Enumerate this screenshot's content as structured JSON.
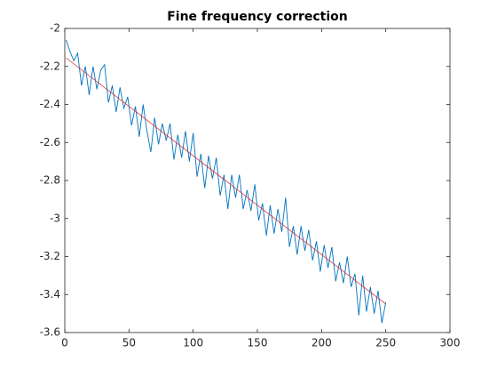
{
  "chart_data": {
    "type": "line",
    "title": "Fine frequency correction",
    "xlim": [
      0,
      300
    ],
    "xticks": [
      0,
      50,
      100,
      150,
      200,
      250,
      300
    ],
    "ylim": [
      -3.6,
      -2
    ],
    "yticks": [
      -2,
      -2.2,
      -2.4,
      -2.6,
      -2.8,
      -3,
      -3.2,
      -3.4,
      -3.6
    ],
    "series": [
      {
        "color": "#0072bd",
        "x": [
          1,
          4,
          7,
          10,
          13,
          16,
          19,
          22,
          25,
          28,
          31,
          34,
          37,
          40,
          43,
          46,
          49,
          52,
          55,
          58,
          61,
          64,
          67,
          70,
          73,
          76,
          79,
          82,
          85,
          88,
          91,
          94,
          97,
          100,
          103,
          106,
          109,
          112,
          115,
          118,
          121,
          124,
          127,
          130,
          133,
          136,
          139,
          142,
          145,
          148,
          151,
          154,
          157,
          160,
          163,
          166,
          169,
          172,
          175,
          178,
          181,
          184,
          187,
          190,
          193,
          196,
          199,
          202,
          205,
          208,
          211,
          214,
          217,
          220,
          223,
          226,
          229,
          232,
          235,
          238,
          241,
          244,
          247,
          250
        ],
        "values": [
          -2.06,
          -2.12,
          -2.17,
          -2.13,
          -2.3,
          -2.2,
          -2.35,
          -2.2,
          -2.32,
          -2.22,
          -2.19,
          -2.39,
          -2.3,
          -2.44,
          -2.31,
          -2.42,
          -2.36,
          -2.51,
          -2.41,
          -2.57,
          -2.4,
          -2.54,
          -2.65,
          -2.47,
          -2.61,
          -2.5,
          -2.59,
          -2.5,
          -2.69,
          -2.56,
          -2.68,
          -2.54,
          -2.7,
          -2.55,
          -2.78,
          -2.66,
          -2.84,
          -2.67,
          -2.79,
          -2.68,
          -2.88,
          -2.77,
          -2.95,
          -2.77,
          -2.89,
          -2.77,
          -2.95,
          -2.85,
          -2.96,
          -2.82,
          -3.01,
          -2.92,
          -3.09,
          -2.93,
          -3.08,
          -2.95,
          -3.07,
          -2.89,
          -3.15,
          -3.04,
          -3.19,
          -3.04,
          -3.17,
          -3.06,
          -3.22,
          -3.12,
          -3.28,
          -3.14,
          -3.26,
          -3.15,
          -3.33,
          -3.23,
          -3.34,
          -3.2,
          -3.36,
          -3.29,
          -3.51,
          -3.3,
          -3.49,
          -3.36,
          -3.5,
          -3.38,
          -3.55,
          -3.44
        ]
      },
      {
        "color": "#e02020",
        "x": [
          1,
          250
        ],
        "values": [
          -2.155,
          -3.45
        ]
      }
    ]
  }
}
